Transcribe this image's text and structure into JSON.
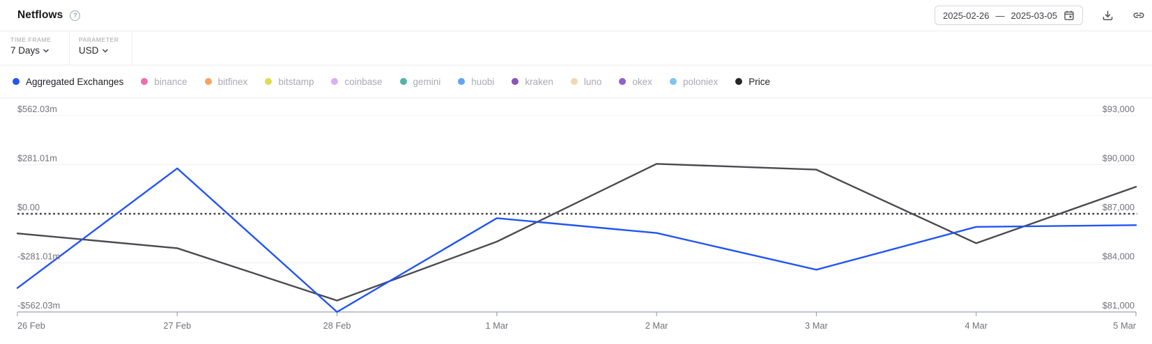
{
  "header": {
    "title": "Netflows",
    "help_glyph": "?",
    "date_range": {
      "start": "2025-02-26",
      "separator": "—",
      "end": "2025-03-05"
    }
  },
  "controls": {
    "time_frame": {
      "label": "TIME FRAME",
      "value": "7 Days"
    },
    "parameter": {
      "label": "PARAMETER",
      "value": "USD"
    }
  },
  "legend": {
    "items": [
      {
        "label": "Aggregated Exchanges",
        "color": "#2254f4",
        "active": true
      },
      {
        "label": "binance",
        "color": "#f06dab",
        "active": false
      },
      {
        "label": "bitfinex",
        "color": "#f5a463",
        "active": false
      },
      {
        "label": "bitstamp",
        "color": "#dade52",
        "active": false
      },
      {
        "label": "coinbase",
        "color": "#d9b0f2",
        "active": false
      },
      {
        "label": "gemini",
        "color": "#53b3a4",
        "active": false
      },
      {
        "label": "huobi",
        "color": "#60a5f0",
        "active": false
      },
      {
        "label": "kraken",
        "color": "#8a55bb",
        "active": false
      },
      {
        "label": "luno",
        "color": "#ecd9b4",
        "active": false
      },
      {
        "label": "okex",
        "color": "#9061c9",
        "active": false
      },
      {
        "label": "poloniex",
        "color": "#7cc4f2",
        "active": false
      },
      {
        "label": "Price",
        "color": "#27272a",
        "active": true
      }
    ]
  },
  "chart_data": {
    "type": "line",
    "x_labels": [
      "26 Feb",
      "27 Feb",
      "28 Feb",
      "1 Mar",
      "2 Mar",
      "3 Mar",
      "4 Mar",
      "5 Mar"
    ],
    "left_axis": {
      "ticks": [
        "$562.03m",
        "$281.01m",
        "$0.00",
        "-$281.01m",
        "-$562.03m"
      ],
      "max": 562.03,
      "min": -562.03,
      "unit": "USD millions"
    },
    "right_axis": {
      "ticks": [
        "$93,000",
        "$90,000",
        "$87,000",
        "$84,000",
        "$81,000"
      ],
      "max": 93000,
      "min": 81000,
      "unit": "USD"
    },
    "zero_line": {
      "style": "dotted",
      "left_value": 0,
      "right_value": 87000
    },
    "series": [
      {
        "name": "Aggregated Exchanges",
        "axis": "left",
        "color": "#2254f4",
        "values": [
          -425,
          260,
          -562.03,
          -25,
          -110,
          -320,
          -75,
          -65
        ]
      },
      {
        "name": "Price",
        "axis": "right",
        "color": "#4a4a4f",
        "values": [
          85800,
          84900,
          81700,
          85300,
          90050,
          89700,
          85200,
          88650
        ]
      }
    ],
    "grid": true,
    "legend_position": "top"
  }
}
